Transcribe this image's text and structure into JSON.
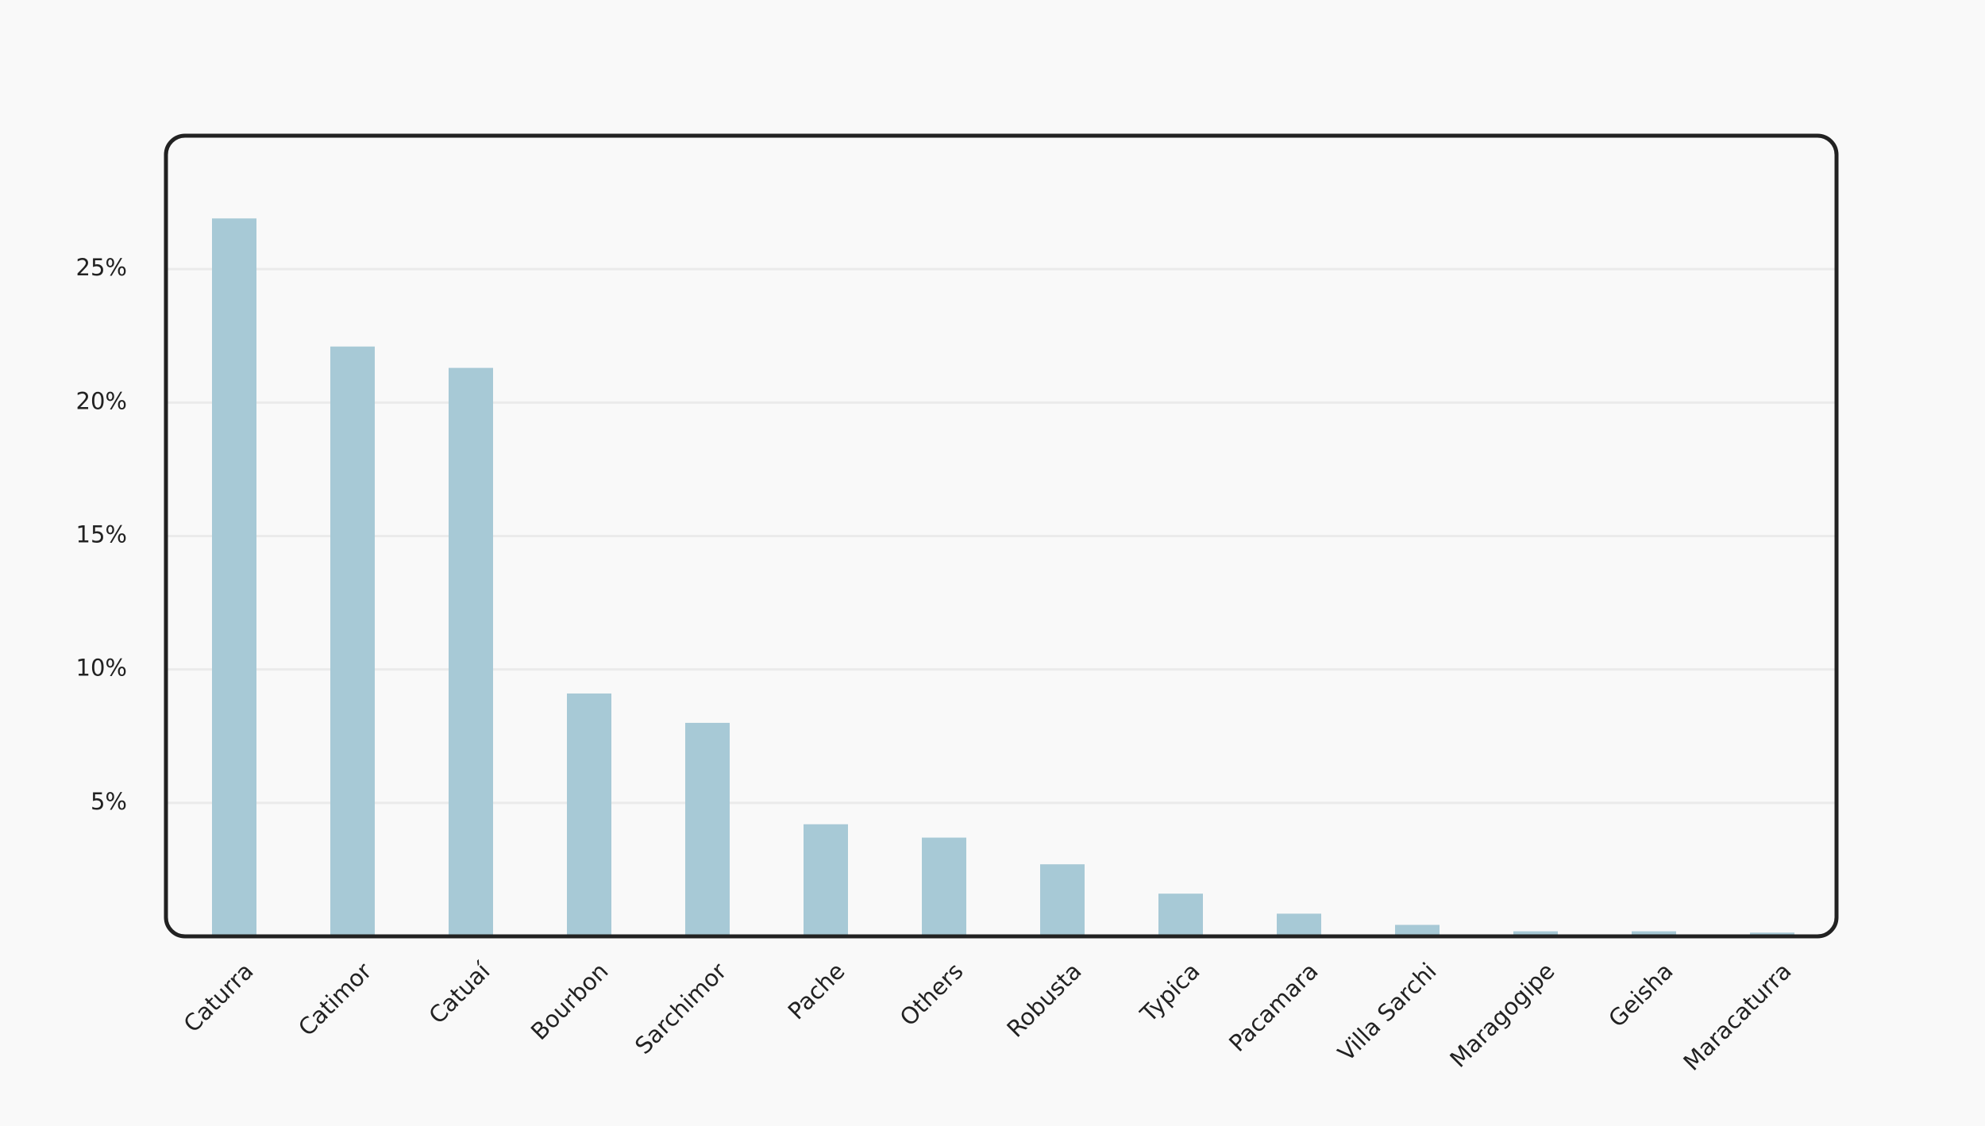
{
  "chart_data": {
    "type": "bar",
    "categories": [
      "Caturra",
      "Catimor",
      "Catuaí",
      "Bourbon",
      "Sarchimor",
      "Pache",
      "Others",
      "Robusta",
      "Typica",
      "Pacamara",
      "Villa Sarchi",
      "Maragogipe",
      "Geisha",
      "Maracaturra"
    ],
    "values": [
      26.9,
      22.1,
      21.3,
      9.1,
      8.0,
      4.2,
      3.7,
      2.7,
      1.6,
      0.85,
      0.43,
      0.19,
      0.19,
      0.14
    ],
    "color": "#a7c9d6",
    "ylim": [
      0,
      30
    ],
    "yticks": [
      {
        "value": 5,
        "label": "5%"
      },
      {
        "value": 10,
        "label": "10%"
      },
      {
        "value": 15,
        "label": "15%"
      },
      {
        "value": 20,
        "label": "20%"
      },
      {
        "value": 25,
        "label": "25%"
      }
    ],
    "grid": true
  }
}
